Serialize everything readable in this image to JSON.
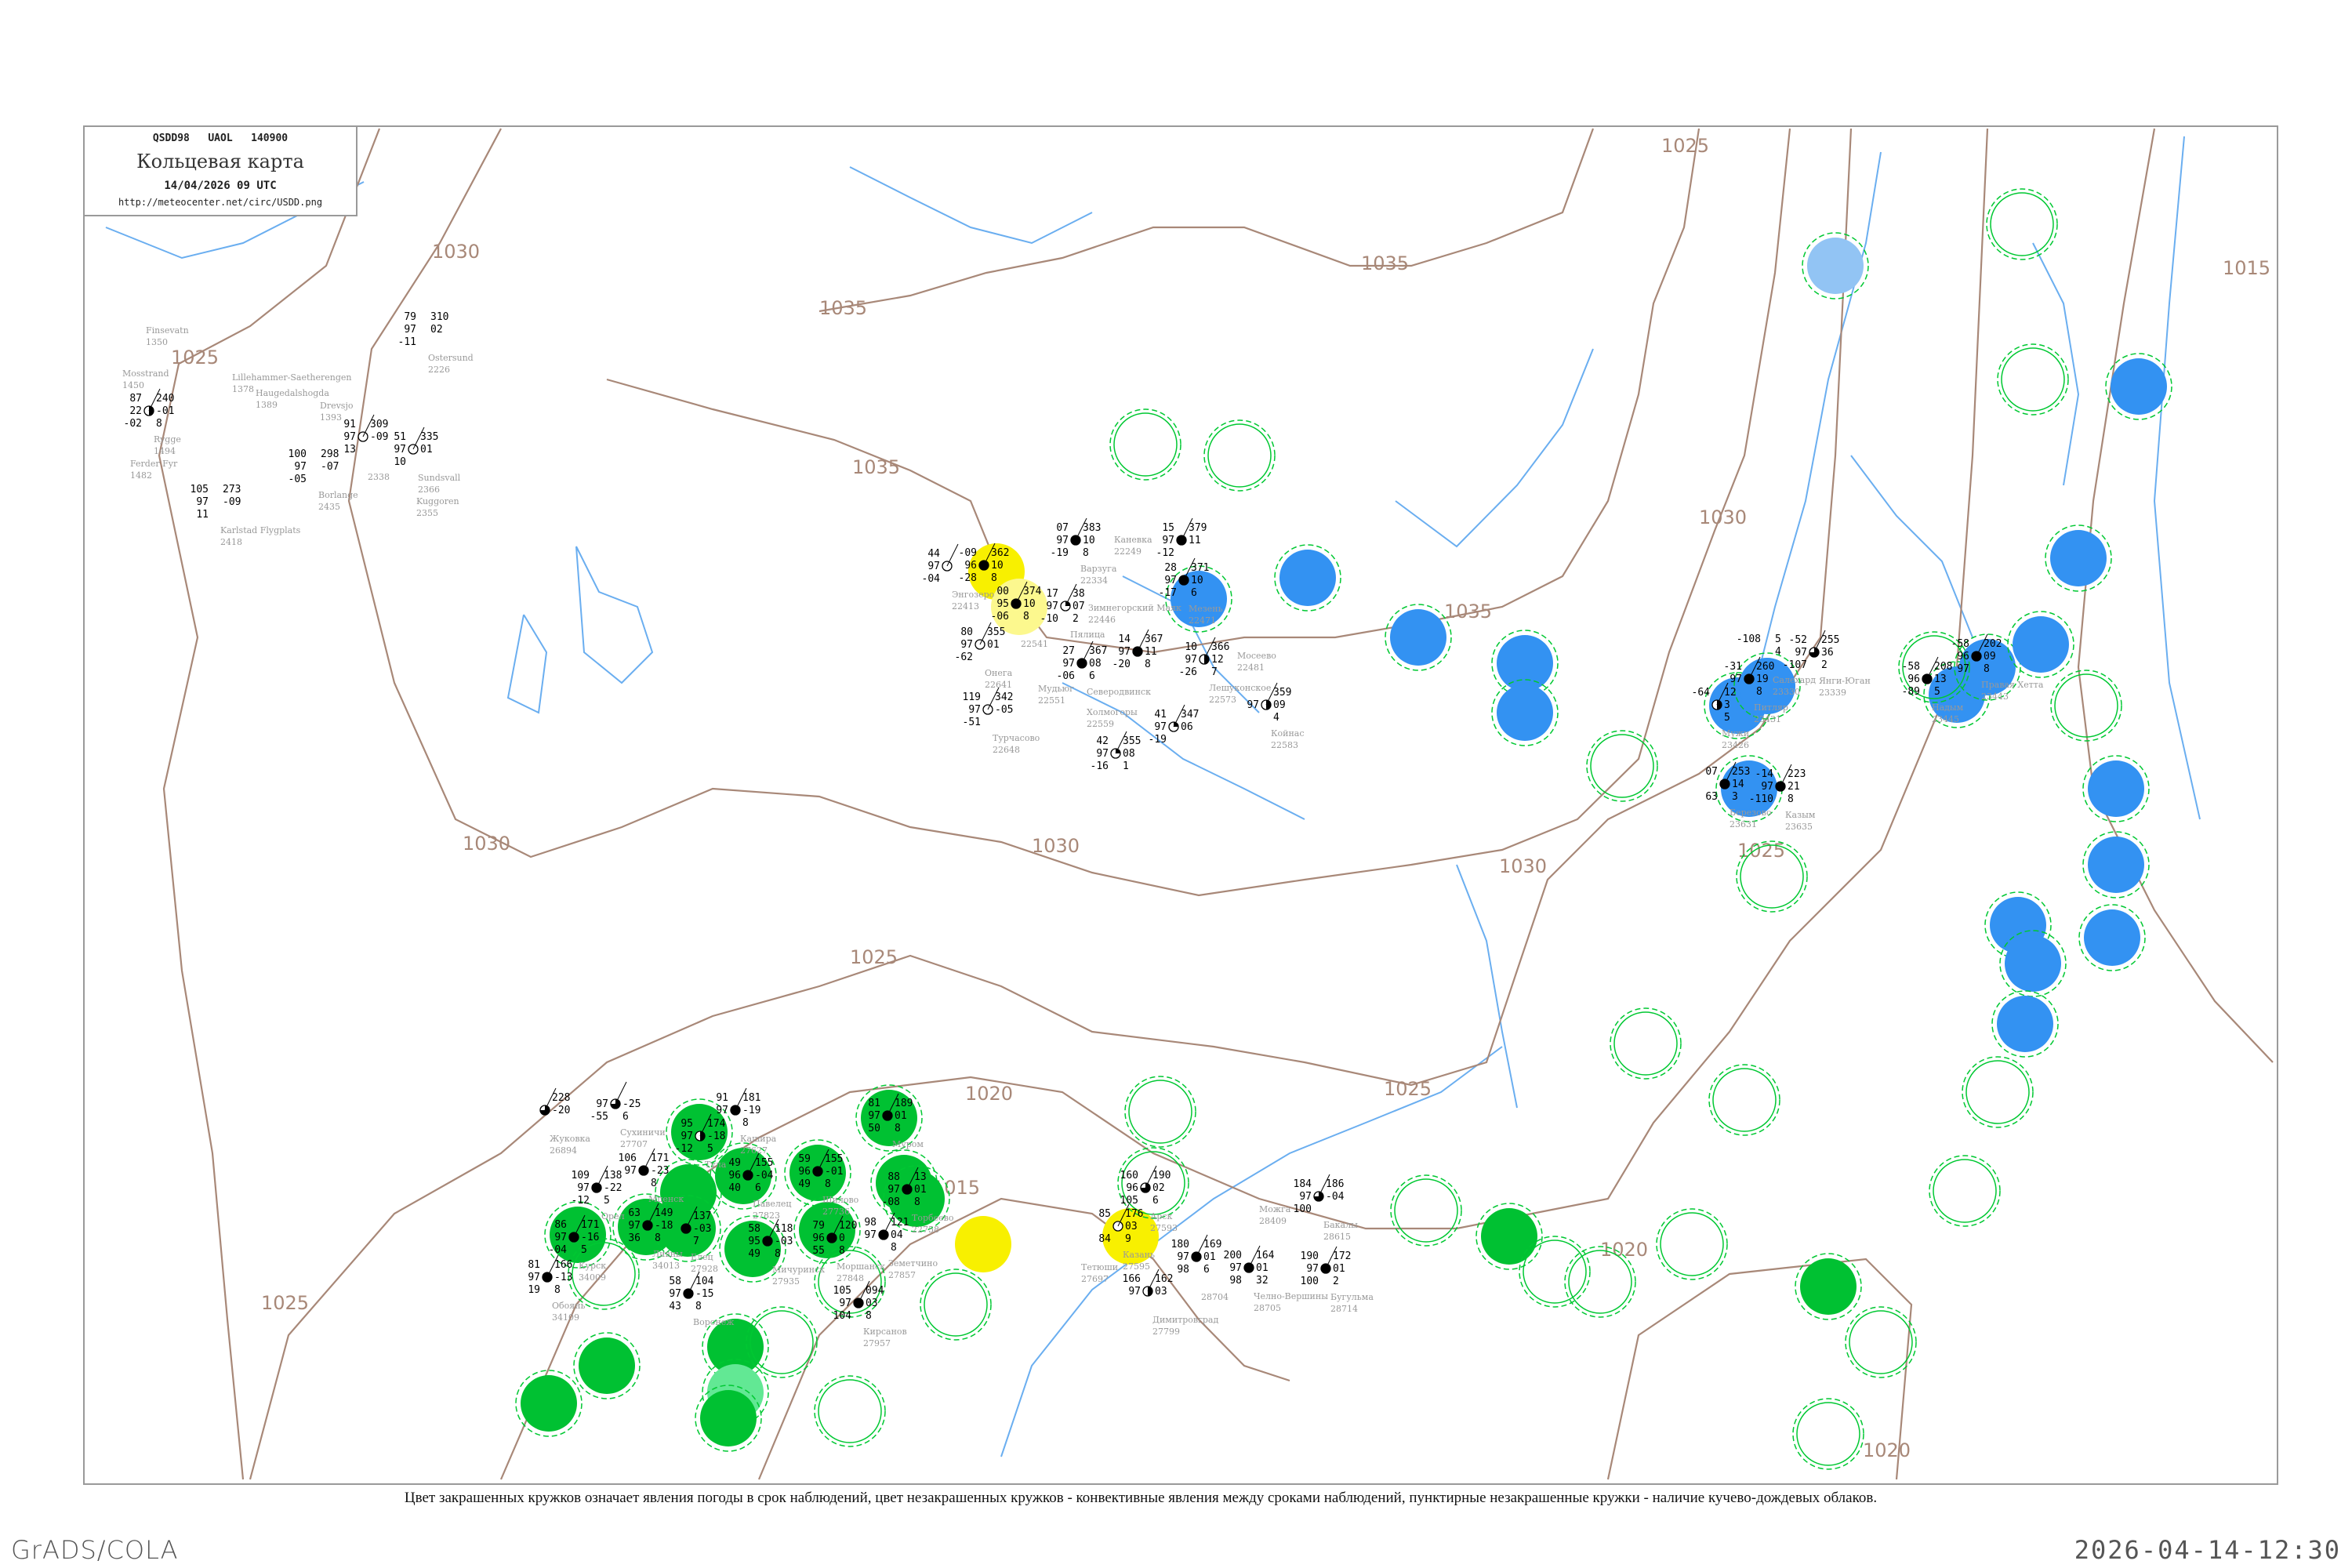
{
  "header": {
    "code_line": "QSDD98   UAOL   140900",
    "title": "Кольцевая карта",
    "datetime": "14/04/2026 09 UTC",
    "url": "http://meteocenter.net/circ/USDD.png"
  },
  "caption": "Цвет закрашенных кружков означает явления погоды в срок наблюдений, цвет незакрашенных кружков - конвективные явления между сроками наблюдений, пунктирные незакрашенные кружки - наличие кучево-дождевых облаков.",
  "footer": {
    "left": "GrADS/COLA",
    "right": "2026-04-14-12:30"
  },
  "colors": {
    "isobar": "#a88878",
    "river": "#6aaef0",
    "phenomenon_green": "#00c132",
    "phenomenon_blue": "#3392f2",
    "phenomenon_yellow": "#f8f000",
    "phenomenon_light_yellow": "#fcf88e",
    "phenomenon_light_blue": "#92c4f4",
    "phenomenon_light_green": "#62e894",
    "cb_ring": "#00c832"
  },
  "isobar_labels": [
    "1025",
    "1030",
    "1035",
    "1035",
    "1035",
    "1035",
    "1030",
    "1025",
    "1015",
    "1030",
    "1030",
    "1025",
    "1020",
    "1025",
    "1020",
    "1015",
    "1025",
    "1025",
    "1020",
    "1030"
  ],
  "stations": [
    {
      "name": "Арск",
      "id": "27593",
      "left": [
        "160",
        "96",
        "105"
      ],
      "right": [
        "190",
        "02",
        "6"
      ],
      "cover": "threequarter"
    },
    {
      "name": "Казань",
      "id": "27595",
      "left": [
        "85",
        "",
        "84"
      ],
      "right": [
        "176",
        "03",
        "9"
      ],
      "cover": "empty"
    },
    {
      "name": "Можга",
      "id": "28409",
      "left": [],
      "right": [],
      "cover": "none"
    },
    {
      "name": "Димитровград",
      "id": "27799",
      "left": [
        "166",
        "97",
        ""
      ],
      "right": [
        "162",
        "03",
        ""
      ],
      "cover": "half"
    },
    {
      "name": "Тетюши",
      "id": "27697",
      "left": [],
      "right": [],
      "cover": "none"
    },
    {
      "name": "",
      "id": "28704",
      "left": [
        "180",
        "97",
        "98"
      ],
      "right": [
        "169",
        "01",
        "6"
      ],
      "cover": "full"
    },
    {
      "name": "Челно-Вершины",
      "id": "28705",
      "left": [
        "200",
        "97",
        "98"
      ],
      "right": [
        "164",
        "01",
        "32"
      ],
      "cover": "full"
    },
    {
      "name": "Бугульма",
      "id": "28714",
      "left": [
        "190",
        "97",
        "100"
      ],
      "right": [
        "172",
        "01",
        "2"
      ],
      "cover": "full"
    },
    {
      "name": "Бакалы",
      "id": "28615",
      "left": [
        "184",
        "97",
        "100"
      ],
      "right": [
        "186",
        "-04",
        ""
      ],
      "cover": "threequarter"
    },
    {
      "name": "Питляр",
      "id": "23431",
      "left": [
        "-31",
        "97",
        ""
      ],
      "right": [
        "260",
        "19",
        "8"
      ],
      "cover": "full"
    },
    {
      "name": "Салехард",
      "id": "23330",
      "left": [
        "-108",
        "",
        ""
      ],
      "right": [
        "5",
        "4",
        ""
      ],
      "cover": "none"
    },
    {
      "name": "Янги-Юган",
      "id": "23339",
      "left": [
        "-52",
        "97",
        "-107"
      ],
      "right": [
        "255",
        "36",
        "2"
      ],
      "cover": "threequarter"
    },
    {
      "name": "Надым",
      "id": "23445",
      "left": [
        "-58",
        "96",
        "-89"
      ],
      "right": [
        "208",
        "13",
        "5"
      ],
      "cover": "full"
    },
    {
      "name": "Правая Хетта",
      "id": "23443",
      "left": [
        "-58",
        "96",
        "97"
      ],
      "right": [
        "202",
        "09",
        "8"
      ],
      "cover": "full"
    },
    {
      "name": "Мужи",
      "id": "23426",
      "left": [
        "-64",
        "",
        ""
      ],
      "right": [
        "12",
        "3",
        "5"
      ],
      "cover": "half"
    },
    {
      "name": "Березово",
      "id": "23631",
      "left": [
        "07",
        "",
        "63"
      ],
      "right": [
        "253",
        "14",
        "3"
      ],
      "cover": "full"
    },
    {
      "name": "Казым",
      "id": "23635",
      "left": [
        "-14",
        "97",
        "-110"
      ],
      "right": [
        "223",
        "21",
        "8"
      ],
      "cover": "full"
    },
    {
      "name": "Сухиничи",
      "id": "27707",
      "left": [
        "",
        "97",
        "-55"
      ],
      "right": [
        "",
        "-25",
        "6"
      ],
      "cover": "threequarter"
    },
    {
      "name": "Жуковка",
      "id": "26894",
      "left": [
        "",
        "",
        ""
      ],
      "right": [
        "228",
        "-20",
        ""
      ],
      "cover": "threequarter"
    },
    {
      "name": "Кашира",
      "id": "27627",
      "left": [
        "91",
        "97",
        ""
      ],
      "right": [
        "181",
        "-19",
        "8"
      ],
      "cover": "full"
    },
    {
      "name": "Мценск",
      "id": "",
      "left": [
        "106",
        "97",
        ""
      ],
      "right": [
        "171",
        "-23",
        "8"
      ],
      "cover": "full"
    },
    {
      "name": "Орел",
      "id": "",
      "left": [
        "109",
        "97",
        "-12"
      ],
      "right": [
        "138",
        "-22",
        "5"
      ],
      "cover": "full"
    },
    {
      "name": "Тула",
      "id": "",
      "left": [
        "95",
        "97",
        "-12"
      ],
      "right": [
        "174",
        "-18",
        "5"
      ],
      "cover": "half"
    },
    {
      "name": "Павелец",
      "id": "27823",
      "left": [
        "49",
        "96",
        "40"
      ],
      "right": [
        "155",
        "-04",
        "6"
      ],
      "cover": "full"
    },
    {
      "name": "Шилово",
      "id": "27736",
      "left": [
        "59",
        "96",
        "49"
      ],
      "right": [
        "155",
        "-01",
        "8"
      ],
      "cover": "full"
    },
    {
      "name": "Муром",
      "id": "",
      "left": [
        "81",
        "97",
        "50"
      ],
      "right": [
        "189",
        "01",
        "8"
      ],
      "cover": "full"
    },
    {
      "name": "Курск",
      "id": "34009",
      "left": [
        "86",
        "97",
        "-04"
      ],
      "right": [
        "171",
        "-16",
        "5"
      ],
      "cover": "full"
    },
    {
      "name": "Ливны",
      "id": "34013",
      "left": [
        "63",
        "97",
        "36"
      ],
      "right": [
        "149",
        "-18",
        "8"
      ],
      "cover": "full"
    },
    {
      "name": "Елец",
      "id": "27928",
      "left": [
        "",
        "",
        ""
      ],
      "right": [
        "137",
        "-03",
        "7"
      ],
      "cover": "full"
    },
    {
      "name": "Мичуринск",
      "id": "27935",
      "left": [
        "58",
        "95",
        "49"
      ],
      "right": [
        "118",
        "-03",
        "8"
      ],
      "cover": "full"
    },
    {
      "name": "Моршанск",
      "id": "27848",
      "left": [
        "79",
        "96",
        "55"
      ],
      "right": [
        "120",
        "0",
        "8"
      ],
      "cover": "full"
    },
    {
      "name": "Земетчино",
      "id": "27857",
      "left": [
        "98",
        "97",
        ""
      ],
      "right": [
        "121",
        "04",
        "8"
      ],
      "cover": "full"
    },
    {
      "name": "Торбеево",
      "id": "22758",
      "left": [
        "88",
        "97",
        "-08"
      ],
      "right": [
        "13",
        "01",
        "8"
      ],
      "cover": "full"
    },
    {
      "name": "Обоянь",
      "id": "34109",
      "left": [
        "81",
        "97",
        "19"
      ],
      "right": [
        "166",
        "-13",
        "8"
      ],
      "cover": "full"
    },
    {
      "name": "Воронеж",
      "id": "",
      "left": [
        "58",
        "97",
        "43"
      ],
      "right": [
        "104",
        "-15",
        "8"
      ],
      "cover": "full"
    },
    {
      "name": "Кирсанов",
      "id": "27957",
      "left": [
        "105",
        "97",
        "104"
      ],
      "right": [
        "094",
        "03",
        "8"
      ],
      "cover": "full"
    },
    {
      "name": "Онега",
      "id": "22641",
      "left": [
        "80",
        "97",
        "-62"
      ],
      "right": [
        "355",
        "01",
        ""
      ],
      "cover": "empty"
    },
    {
      "name": "",
      "id": "",
      "left": [
        "-09",
        "96",
        "-28"
      ],
      "right": [
        "362",
        "10",
        "8"
      ],
      "cover": "full"
    },
    {
      "name": "",
      "id": "22541",
      "left": [
        "00",
        "95",
        "-06"
      ],
      "right": [
        "374",
        "10",
        "8"
      ],
      "cover": "full"
    },
    {
      "name": "Энгозеро",
      "id": "22413",
      "left": [
        "44",
        "97",
        "-04"
      ],
      "right": [],
      "cover": "empty"
    },
    {
      "name": "Варзуга",
      "id": "22334",
      "left": [
        "07",
        "97",
        "-19"
      ],
      "right": [
        "383",
        "10",
        "8"
      ],
      "cover": "full"
    },
    {
      "name": "Пялица",
      "id": "",
      "left": [
        "17",
        "97",
        "-10"
      ],
      "right": [
        "38",
        "07",
        "2"
      ],
      "cover": "quarter"
    },
    {
      "name": "Зимнегорский Маяк",
      "id": "22446",
      "left": [],
      "right": [],
      "cover": "none"
    },
    {
      "name": "Каневка",
      "id": "22249",
      "left": [],
      "right": [],
      "cover": "none"
    },
    {
      "name": "Северодвинск",
      "id": "",
      "left": [
        "27",
        "97",
        "-06"
      ],
      "right": [
        "367",
        "08",
        "6"
      ],
      "cover": "full"
    },
    {
      "name": "Холмогоры",
      "id": "22559",
      "left": [],
      "right": [],
      "cover": "none"
    },
    {
      "name": "Мудьюг",
      "id": "22551",
      "left": [],
      "right": [],
      "cover": "none"
    },
    {
      "name": "",
      "id": "",
      "left": [
        "14",
        "97",
        "-20"
      ],
      "right": [
        "367",
        "11",
        "8"
      ],
      "cover": "full"
    },
    {
      "name": "Мезень",
      "id": "22471",
      "left": [
        "28",
        "97",
        "-17"
      ],
      "right": [
        "371",
        "10",
        "6"
      ],
      "cover": "full"
    },
    {
      "name": "",
      "id": "",
      "left": [
        "15",
        "97",
        "-12"
      ],
      "right": [
        "379",
        "11",
        ""
      ],
      "cover": "full"
    },
    {
      "name": "Лешуконское",
      "id": "22573",
      "left": [
        "10",
        "97",
        "-26"
      ],
      "right": [
        "366",
        "12",
        "7"
      ],
      "cover": "half"
    },
    {
      "name": "Мосеево",
      "id": "22481",
      "left": [],
      "right": [],
      "cover": "none"
    },
    {
      "name": "Койнас",
      "id": "22583",
      "left": [
        "",
        "97",
        ""
      ],
      "right": [
        "359",
        "09",
        "4"
      ],
      "cover": "half"
    },
    {
      "name": "",
      "id": "",
      "left": [
        "41",
        "97",
        "-19"
      ],
      "right": [
        "347",
        "06",
        ""
      ],
      "cover": "quarter"
    },
    {
      "name": "",
      "id": "",
      "left": [
        "42",
        "97",
        "-16"
      ],
      "right": [
        "355",
        "08",
        "1"
      ],
      "cover": "quarter"
    },
    {
      "name": "Турчасово",
      "id": "22648",
      "left": [
        "119",
        "97",
        "-51"
      ],
      "right": [
        "342",
        "-05",
        ""
      ],
      "cover": "empty"
    },
    {
      "name": "Finsevatn",
      "id": "1350",
      "left": [],
      "right": [],
      "cover": "none"
    },
    {
      "name": "Mosstrand",
      "id": "1450",
      "left": [],
      "right": [],
      "cover": "none"
    },
    {
      "name": "Lillehammer-Saetherengen",
      "id": "1378",
      "left": [],
      "right": [],
      "cover": "none"
    },
    {
      "name": "Haugedalshogda",
      "id": "1389",
      "left": [],
      "right": [],
      "cover": "none"
    },
    {
      "name": "Drevsjo",
      "id": "1393",
      "left": [],
      "right": [],
      "cover": "none"
    },
    {
      "name": "Ostersund",
      "id": "2226",
      "left": [
        "79",
        "97",
        "-11"
      ],
      "right": [
        "310",
        "02",
        ""
      ],
      "cover": "none"
    },
    {
      "name": "Rygge",
      "id": "1494",
      "left": [
        "87",
        "22",
        "-02"
      ],
      "right": [
        "240",
        "-01",
        "8"
      ],
      "cover": "half"
    },
    {
      "name": "Ferder Fyr",
      "id": "1482",
      "left": [],
      "right": [],
      "cover": "none"
    },
    {
      "name": "",
      "id": "2338",
      "left": [
        "91",
        "97",
        "13"
      ],
      "right": [
        "309",
        "-09",
        ""
      ],
      "cover": "empty"
    },
    {
      "name": "Sundsvall",
      "id": "2366",
      "left": [
        "51",
        "97",
        "10"
      ],
      "right": [
        "335",
        "01",
        ""
      ],
      "cover": "empty"
    },
    {
      "name": "Kuggoren",
      "id": "2355",
      "left": [],
      "right": [],
      "cover": "none"
    },
    {
      "name": "Borlange",
      "id": "2435",
      "left": [
        "100",
        "97",
        "-05"
      ],
      "right": [
        "298",
        "-07",
        ""
      ],
      "cover": "none"
    },
    {
      "name": "Karlstad Flygplats",
      "id": "2418",
      "left": [
        "105",
        "97",
        "11"
      ],
      "right": [
        "273",
        "-09",
        ""
      ],
      "cover": "none"
    }
  ]
}
